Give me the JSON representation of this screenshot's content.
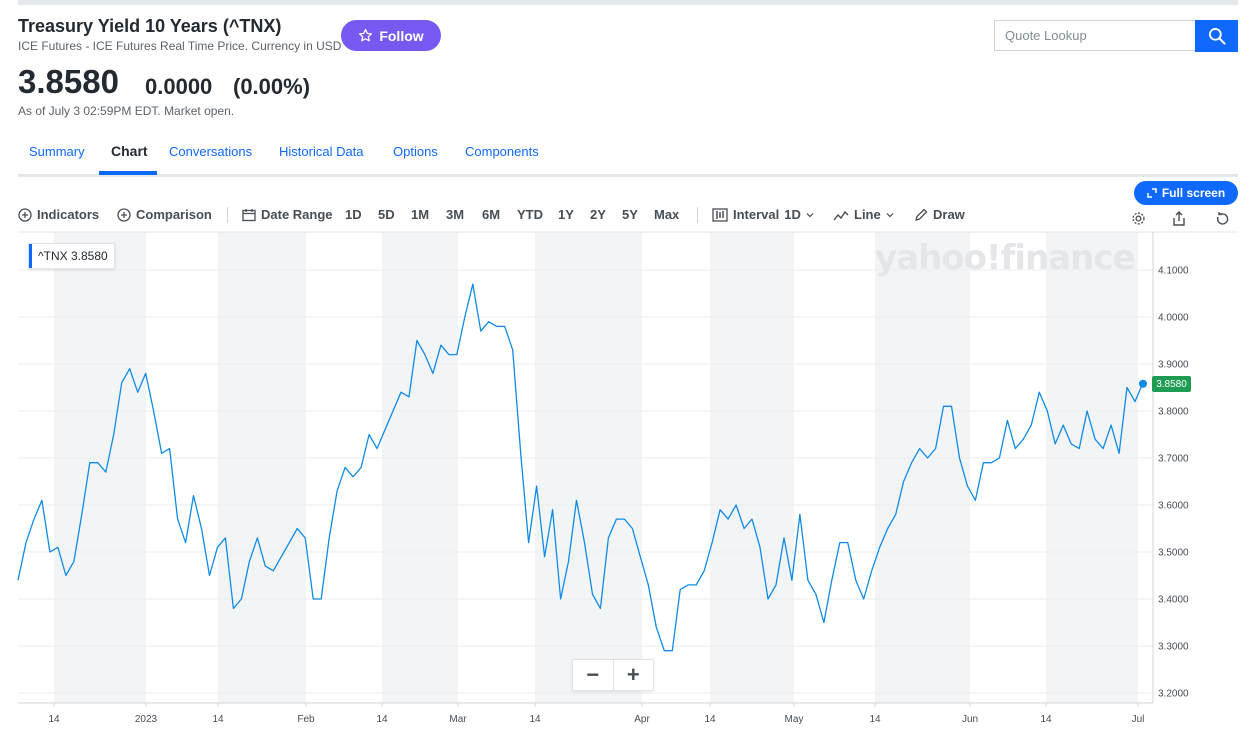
{
  "header": {
    "title": "Treasury Yield 10 Years (^TNX)",
    "subtitle": "ICE Futures - ICE Futures Real Time Price. Currency in USD",
    "follow_label": "Follow",
    "price": "3.8580",
    "change": "0.0000",
    "change_pct": "(0.00%)",
    "as_of": "As of July 3 02:59PM EDT. Market open."
  },
  "search": {
    "placeholder": "Quote Lookup"
  },
  "tabs": [
    {
      "label": "Summary"
    },
    {
      "label": "Chart"
    },
    {
      "label": "Conversations"
    },
    {
      "label": "Historical Data"
    },
    {
      "label": "Options"
    },
    {
      "label": "Components"
    }
  ],
  "toolbar": {
    "fullscreen_label": "Full screen",
    "indicators": "Indicators",
    "comparison": "Comparison",
    "date_range": "Date Range",
    "ranges": [
      "1D",
      "5D",
      "1M",
      "3M",
      "6M",
      "YTD",
      "1Y",
      "2Y",
      "5Y",
      "Max"
    ],
    "interval_label": "Interval",
    "interval_value": "1D",
    "line_label": "Line",
    "draw_label": "Draw"
  },
  "chart": {
    "legend_symbol": "^TNX",
    "legend_value": "3.8580",
    "last_price_tag": "3.8580",
    "watermark": "yahoo!finance",
    "line_color": "#0f8be6",
    "tag_color": "#1e9c53"
  },
  "chart_data": {
    "type": "line",
    "series": [
      {
        "name": "^TNX",
        "values": [
          3.44,
          3.52,
          3.57,
          3.61,
          3.5,
          3.51,
          3.45,
          3.48,
          3.58,
          3.69,
          3.69,
          3.67,
          3.75,
          3.86,
          3.89,
          3.84,
          3.88,
          3.8,
          3.71,
          3.72,
          3.57,
          3.52,
          3.62,
          3.55,
          3.45,
          3.51,
          3.53,
          3.38,
          3.4,
          3.48,
          3.53,
          3.47,
          3.46,
          3.49,
          3.52,
          3.55,
          3.53,
          3.4,
          3.4,
          3.53,
          3.63,
          3.68,
          3.66,
          3.68,
          3.75,
          3.72,
          3.76,
          3.8,
          3.84,
          3.83,
          3.95,
          3.92,
          3.88,
          3.94,
          3.92,
          3.92,
          4.0,
          4.07,
          3.97,
          3.99,
          3.98,
          3.98,
          3.93,
          3.71,
          3.52,
          3.64,
          3.49,
          3.59,
          3.4,
          3.48,
          3.61,
          3.52,
          3.41,
          3.38,
          3.53,
          3.57,
          3.57,
          3.55,
          3.49,
          3.43,
          3.34,
          3.29,
          3.29,
          3.42,
          3.43,
          3.43,
          3.46,
          3.52,
          3.59,
          3.57,
          3.6,
          3.55,
          3.57,
          3.51,
          3.4,
          3.43,
          3.53,
          3.44,
          3.58,
          3.44,
          3.41,
          3.35,
          3.44,
          3.52,
          3.52,
          3.44,
          3.4,
          3.46,
          3.51,
          3.55,
          3.58,
          3.65,
          3.69,
          3.72,
          3.7,
          3.72,
          3.81,
          3.81,
          3.7,
          3.64,
          3.61,
          3.69,
          3.69,
          3.7,
          3.78,
          3.72,
          3.74,
          3.77,
          3.84,
          3.8,
          3.73,
          3.77,
          3.73,
          3.72,
          3.8,
          3.74,
          3.72,
          3.77,
          3.71,
          3.85,
          3.82,
          3.86
        ]
      }
    ],
    "x_ticks": [
      "14",
      "2023",
      "14",
      "Feb",
      "14",
      "Mar",
      "14",
      "Apr",
      "14",
      "May",
      "14",
      "Jun",
      "14",
      "Jul"
    ],
    "y_ticks": [
      "4.1000",
      "4.0000",
      "3.9000",
      "3.8000",
      "3.7000",
      "3.6000",
      "3.5000",
      "3.4000",
      "3.3000",
      "3.2000"
    ],
    "ylim": [
      3.18,
      4.18
    ],
    "last_value": 3.858,
    "grid": true
  }
}
